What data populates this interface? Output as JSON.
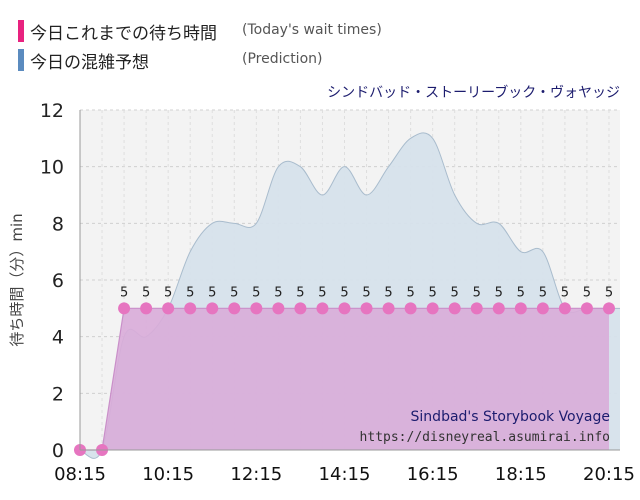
{
  "legend": {
    "today": {
      "label": "今日これまでの待ち時間",
      "sub": "(Today's wait times)",
      "color": "#e8227f"
    },
    "forecast": {
      "label": "今日の混雑予想",
      "sub": "(Prediction)",
      "color": "#5b8bbf"
    }
  },
  "chart_data": {
    "type": "area",
    "title": "シンドバッド・ストーリーブック・ヴォヤッジ",
    "ylabel": "待ち時間（分）min",
    "ylim": [
      0,
      12
    ],
    "yticks": [
      0,
      2,
      4,
      6,
      8,
      10,
      12
    ],
    "xlim": [
      "08:15",
      "20:30"
    ],
    "xticks": [
      "08:15",
      "10:15",
      "12:15",
      "14:15",
      "16:15",
      "18:15",
      "20:15"
    ],
    "grid": true,
    "watermark": {
      "name": "Sindbad's Storybook Voyage",
      "url": "https://disneyreal.asumirai.info"
    },
    "colors": {
      "today_fill": "#d9acd9",
      "today_point": "#e675c0",
      "forecast_fill": "#d6e1eb",
      "forecast_line": "#a9bccd"
    },
    "series": [
      {
        "name": "今日これまでの待ち時間",
        "x": [
          "08:15",
          "08:45",
          "09:15",
          "09:45",
          "10:15",
          "10:45",
          "11:15",
          "11:45",
          "12:15",
          "12:45",
          "13:15",
          "13:45",
          "14:15",
          "14:45",
          "15:15",
          "15:45",
          "16:15",
          "16:45",
          "17:15",
          "17:45",
          "18:15",
          "18:45",
          "19:15",
          "19:45",
          "20:15"
        ],
        "values": [
          0,
          0,
          5,
          5,
          5,
          5,
          5,
          5,
          5,
          5,
          5,
          5,
          5,
          5,
          5,
          5,
          5,
          5,
          5,
          5,
          5,
          5,
          5,
          5,
          5
        ]
      },
      {
        "name": "今日の混雑予想",
        "x": [
          "08:15",
          "08:45",
          "09:15",
          "09:45",
          "10:15",
          "10:45",
          "11:15",
          "11:45",
          "12:15",
          "12:45",
          "13:15",
          "13:45",
          "14:15",
          "14:45",
          "15:15",
          "15:45",
          "16:15",
          "16:45",
          "17:15",
          "17:45",
          "18:15",
          "18:45",
          "19:15",
          "19:45",
          "20:15",
          "20:30"
        ],
        "values": [
          0,
          0,
          4,
          4,
          5,
          7,
          8,
          8,
          8,
          10,
          10,
          9,
          10,
          9,
          10,
          11,
          11,
          9,
          8,
          8,
          7,
          7,
          5,
          5,
          5,
          5
        ]
      }
    ]
  }
}
